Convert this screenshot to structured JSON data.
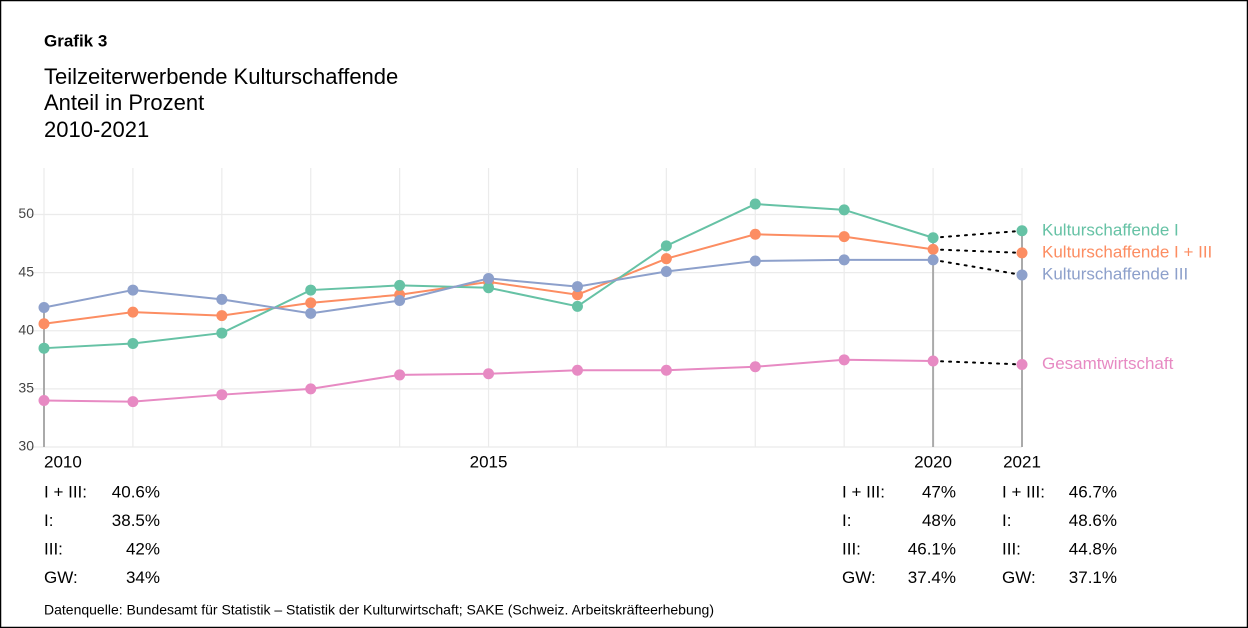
{
  "chart_data": {
    "type": "line",
    "title": "Grafik 3",
    "subtitle": [
      "Teilzeiterwerbende Kulturschaffende",
      "Anteil in Prozent",
      "2010-2021"
    ],
    "source": "Datenquelle: Bundesamt für Statistik – Statistik der Kulturwirtschaft; SAKE (Schweiz. Arbeitskräfteerhebung)",
    "x": [
      2010,
      2011,
      2012,
      2013,
      2014,
      2015,
      2016,
      2017,
      2018,
      2019,
      2020,
      2021
    ],
    "xlim": [
      2010,
      2021
    ],
    "xticks": [
      2010,
      2015,
      2020,
      2021
    ],
    "ylim": [
      30,
      54
    ],
    "yticks": [
      30,
      35,
      40,
      45,
      50
    ],
    "grid": true,
    "series": [
      {
        "name": "Kulturschaffende I + III",
        "short_label": "I + III:",
        "color": "#fc8d62",
        "values": [
          40.6,
          41.6,
          41.3,
          42.4,
          43.1,
          44.2,
          43.1,
          46.2,
          48.3,
          48.1,
          47,
          46.7
        ],
        "value_labels": [
          "40.6%",
          null,
          null,
          null,
          null,
          null,
          null,
          null,
          null,
          null,
          "47%",
          "46.7%"
        ]
      },
      {
        "name": "Kulturschaffende I",
        "short_label": "I:",
        "color": "#66c2a5",
        "values": [
          38.5,
          38.9,
          39.8,
          43.5,
          43.9,
          43.7,
          42.1,
          47.3,
          50.9,
          50.4,
          48,
          48.6
        ],
        "value_labels": [
          "38.5%",
          null,
          null,
          null,
          null,
          null,
          null,
          null,
          null,
          null,
          "48%",
          "48.6%"
        ]
      },
      {
        "name": "Kulturschaffende III",
        "short_label": "III:",
        "color": "#8da0cb",
        "values": [
          42,
          43.5,
          42.7,
          41.5,
          42.6,
          44.5,
          43.8,
          45.1,
          46,
          46.1,
          46.1,
          44.8
        ],
        "value_labels": [
          "42%",
          null,
          null,
          null,
          null,
          null,
          null,
          null,
          null,
          null,
          "46.1%",
          "44.8%"
        ]
      },
      {
        "name": "Gesamtwirtschaft",
        "short_label": "GW:",
        "color": "#e78ac3",
        "values": [
          34,
          33.9,
          34.5,
          35,
          36.2,
          36.3,
          36.6,
          36.6,
          36.9,
          37.5,
          37.4,
          37.1
        ],
        "value_labels": [
          "34%",
          null,
          null,
          null,
          null,
          null,
          null,
          null,
          null,
          null,
          "37.4%",
          "37.1%"
        ]
      }
    ]
  }
}
